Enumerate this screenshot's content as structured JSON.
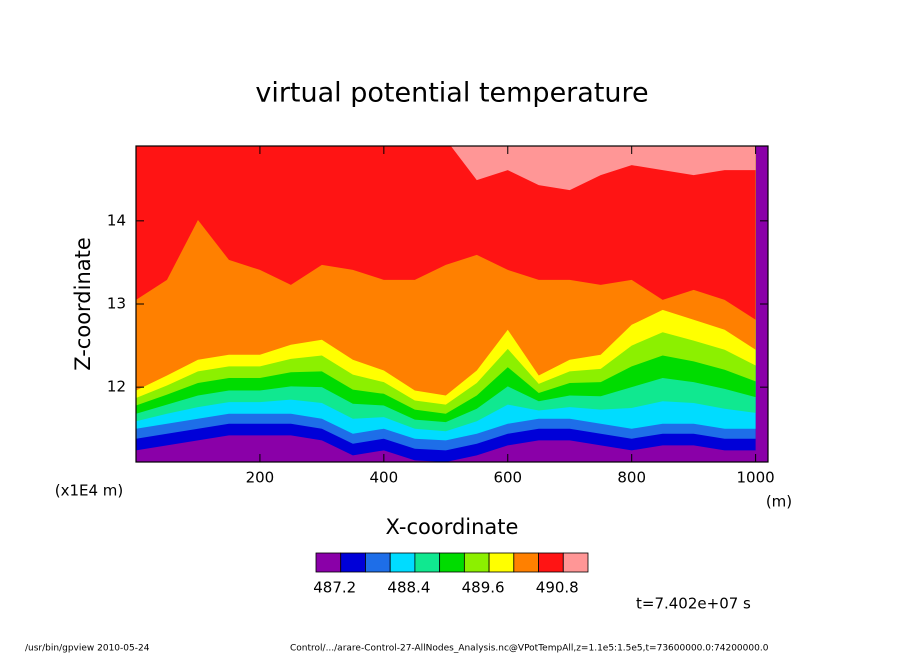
{
  "chart_data": {
    "type": "contour",
    "title": "virtual potential temperature",
    "xlabel": "X-coordinate",
    "ylabel": "Z-coordinate",
    "x_unit": "(m)",
    "y_unit": "(x1E4 m)",
    "xlim": [
      0,
      1020
    ],
    "ylim": [
      11.1,
      14.9
    ],
    "xticks": [
      200,
      400,
      600,
      800,
      1000
    ],
    "yticks": [
      12,
      13,
      14
    ],
    "x": [
      0,
      50,
      100,
      150,
      200,
      250,
      300,
      350,
      400,
      450,
      500,
      550,
      600,
      650,
      700,
      750,
      800,
      850,
      900,
      950,
      1000
    ],
    "levels": [
      487.2,
      487.6,
      488.0,
      488.4,
      488.8,
      489.2,
      489.6,
      490.0,
      490.4,
      490.8
    ],
    "colors": [
      "#8a00a8",
      "#0000d8",
      "#1e6ee8",
      "#00dcff",
      "#10e890",
      "#00dc00",
      "#8cf000",
      "#ffff00",
      "#ff8000",
      "#ff1414",
      "#ff9696"
    ],
    "boundaries": [
      [
        11.24,
        11.3,
        11.36,
        11.42,
        11.42,
        11.42,
        11.36,
        11.18,
        11.24,
        11.12,
        11.1,
        11.18,
        11.3,
        11.36,
        11.36,
        11.3,
        11.24,
        11.3,
        11.3,
        11.24,
        11.24
      ],
      [
        11.38,
        11.44,
        11.5,
        11.56,
        11.56,
        11.56,
        11.5,
        11.32,
        11.38,
        11.26,
        11.24,
        11.32,
        11.44,
        11.5,
        11.5,
        11.44,
        11.38,
        11.44,
        11.44,
        11.38,
        11.38
      ],
      [
        11.5,
        11.56,
        11.62,
        11.68,
        11.68,
        11.68,
        11.62,
        11.44,
        11.5,
        11.38,
        11.36,
        11.44,
        11.56,
        11.62,
        11.62,
        11.56,
        11.5,
        11.56,
        11.56,
        11.5,
        11.5
      ],
      [
        11.59,
        11.68,
        11.76,
        11.82,
        11.82,
        11.85,
        11.81,
        11.62,
        11.64,
        11.5,
        11.47,
        11.59,
        11.79,
        11.72,
        11.76,
        11.73,
        11.75,
        11.83,
        11.81,
        11.74,
        11.69
      ],
      [
        11.68,
        11.79,
        11.9,
        11.96,
        11.96,
        12.01,
        12.0,
        11.8,
        11.78,
        11.61,
        11.58,
        11.74,
        12.01,
        11.83,
        11.9,
        11.89,
        12.0,
        12.11,
        12.06,
        11.98,
        11.88
      ],
      [
        11.78,
        11.91,
        12.05,
        12.11,
        12.11,
        12.18,
        12.19,
        11.97,
        11.92,
        11.73,
        11.68,
        11.9,
        12.24,
        11.93,
        12.05,
        12.06,
        12.25,
        12.38,
        12.31,
        12.21,
        12.07
      ],
      [
        11.87,
        12.02,
        12.19,
        12.25,
        12.25,
        12.34,
        12.38,
        12.15,
        12.06,
        11.84,
        11.79,
        12.05,
        12.46,
        12.04,
        12.19,
        12.22,
        12.5,
        12.66,
        12.56,
        12.45,
        12.26
      ],
      [
        11.96,
        12.14,
        12.33,
        12.39,
        12.39,
        12.51,
        12.57,
        12.33,
        12.2,
        11.96,
        11.9,
        12.2,
        12.69,
        12.14,
        12.33,
        12.39,
        12.75,
        12.93,
        12.81,
        12.69,
        12.45
      ],
      [
        13.05,
        13.29,
        14.01,
        13.53,
        13.41,
        13.23,
        13.47,
        13.41,
        13.29,
        13.29,
        13.47,
        13.59,
        13.41,
        13.29,
        13.29,
        13.23,
        13.29,
        13.05,
        13.17,
        13.05,
        12.81
      ],
      [
        14.92,
        14.92,
        14.92,
        14.92,
        14.92,
        14.92,
        14.98,
        14.98,
        14.98,
        14.98,
        14.98,
        14.49,
        14.61,
        14.43,
        14.37,
        14.55,
        14.67,
        14.61,
        14.55,
        14.61,
        14.61
      ]
    ],
    "colorbar_ticks": [
      487.2,
      488.4,
      489.6,
      490.8
    ],
    "time_label": "t=7.402e+07 s",
    "footer_left": "/usr/bin/gpview  2010-05-24",
    "footer_right": "Control/.../arare-Control-27-AllNodes_Analysis.nc@VPotTempAll,z=1.1e5:1.5e5,t=73600000.0:74200000.0"
  }
}
